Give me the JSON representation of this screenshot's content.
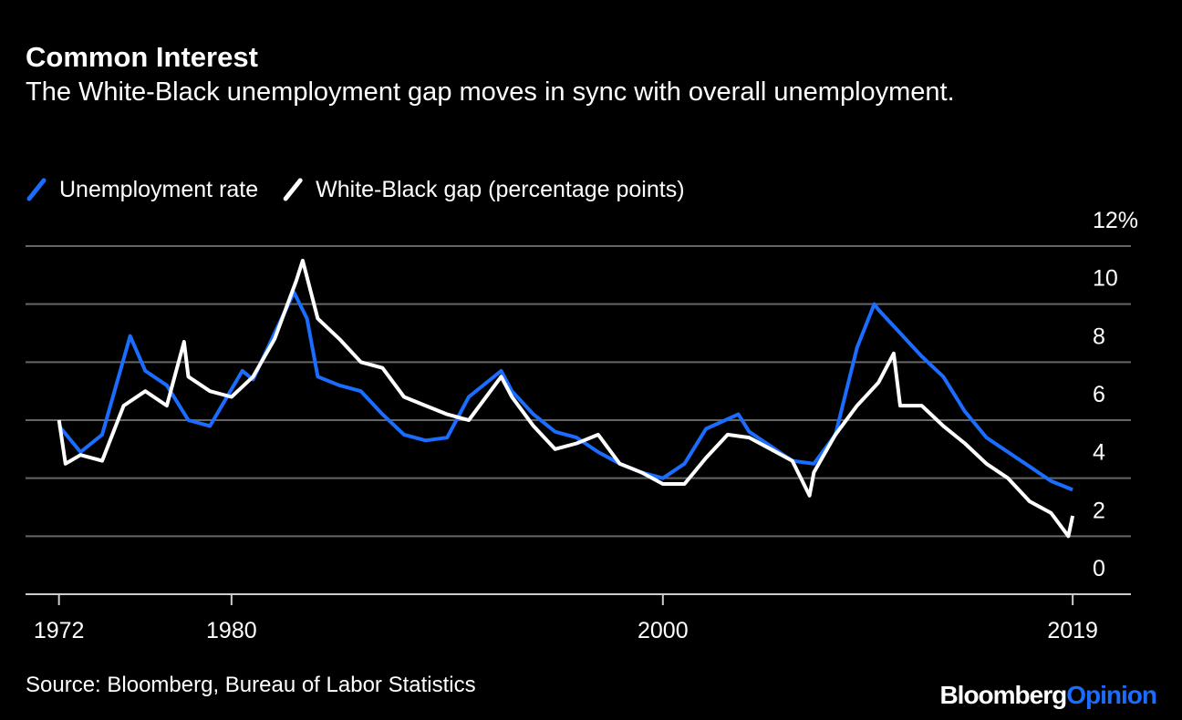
{
  "chart_data": {
    "type": "line",
    "title": "Common Interest",
    "subtitle": "The White-Black unemployment gap moves in sync with overall unemployment.",
    "source": "Source: Bloomberg, Bureau of Labor Statistics",
    "logo": [
      "Bloomberg",
      "Opinion"
    ],
    "xlim": [
      1970.45,
      2021.7
    ],
    "xticks": [
      1972,
      1980,
      2000,
      2019
    ],
    "ylim": [
      0,
      12
    ],
    "yticks": [
      0,
      2,
      4,
      6,
      8,
      10,
      {
        "value": 12,
        "label": "12%"
      }
    ],
    "grid": true,
    "legend": "top-left",
    "series": [
      {
        "name": "Unemployment rate",
        "color": "#1a6dff",
        "x": [
          1972,
          1973,
          1974,
          1975.3,
          1976,
          1977,
          1978,
          1979,
          1980.5,
          1981,
          1982,
          1982.9,
          1983.5,
          1984,
          1985,
          1986,
          1987,
          1988,
          1989,
          1990,
          1991,
          1992.5,
          1993,
          1994,
          1995,
          1996,
          1997,
          1998,
          1999,
          2000,
          2001,
          2002,
          2003.5,
          2004,
          2005,
          2006,
          2007,
          2008,
          2009,
          2009.8,
          2010,
          2011,
          2012,
          2013,
          2014,
          2015,
          2016,
          2017,
          2018,
          2019
        ],
        "values": [
          5.8,
          4.9,
          5.5,
          8.9,
          7.7,
          7.2,
          6.0,
          5.8,
          7.7,
          7.4,
          9.0,
          10.4,
          9.5,
          7.5,
          7.2,
          7.0,
          6.2,
          5.5,
          5.3,
          5.4,
          6.8,
          7.7,
          7.0,
          6.2,
          5.6,
          5.4,
          4.9,
          4.5,
          4.2,
          4.0,
          4.5,
          5.7,
          6.2,
          5.6,
          5.1,
          4.6,
          4.5,
          5.5,
          8.5,
          10.0,
          9.8,
          9.0,
          8.2,
          7.5,
          6.3,
          5.4,
          4.9,
          4.4,
          3.9,
          3.6
        ]
      },
      {
        "name": "White-Black gap (percentage points)",
        "color": "#ffffff",
        "x": [
          1972,
          1972.3,
          1973,
          1974,
          1975,
          1976,
          1977,
          1977.8,
          1978,
          1979,
          1980,
          1981,
          1982,
          1983,
          1983.3,
          1984,
          1985,
          1986,
          1987,
          1988,
          1989,
          1990,
          1991,
          1992.5,
          1993,
          1994,
          1995,
          1996,
          1997,
          1998,
          1999,
          2000,
          2001,
          2002,
          2003,
          2004,
          2005,
          2006,
          2006.8,
          2007,
          2008,
          2009,
          2010,
          2010.7,
          2011,
          2012,
          2013,
          2014,
          2015,
          2016,
          2017,
          2018,
          2018.8,
          2019
        ],
        "values": [
          6.0,
          4.5,
          4.8,
          4.6,
          6.5,
          7.0,
          6.5,
          8.7,
          7.5,
          7.0,
          6.8,
          7.5,
          8.8,
          10.8,
          11.5,
          9.5,
          8.8,
          8.0,
          7.8,
          6.8,
          6.5,
          6.2,
          6.0,
          7.5,
          6.8,
          5.8,
          5.0,
          5.2,
          5.5,
          4.5,
          4.2,
          3.8,
          3.8,
          4.7,
          5.5,
          5.4,
          5.0,
          4.6,
          3.4,
          4.2,
          5.5,
          6.5,
          7.3,
          8.3,
          6.5,
          6.5,
          5.8,
          5.2,
          4.5,
          4.0,
          3.2,
          2.8,
          2.0,
          2.7
        ]
      }
    ]
  }
}
